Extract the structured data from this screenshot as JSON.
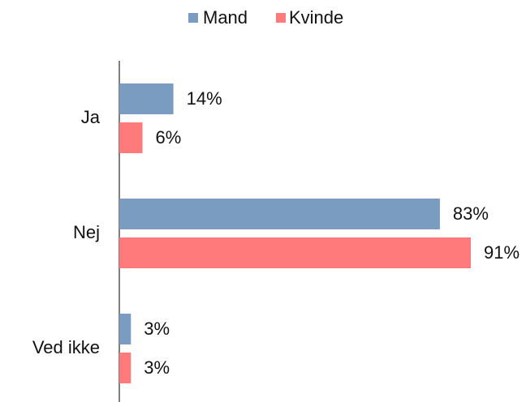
{
  "chart_data": {
    "type": "bar",
    "orientation": "horizontal",
    "categories": [
      "Ja",
      "Nej",
      "Ved ikke"
    ],
    "series": [
      {
        "name": "Mand",
        "color": "#7a9cc1",
        "values": [
          14,
          83,
          3
        ],
        "value_labels": [
          "14%",
          "83%",
          "3%"
        ]
      },
      {
        "name": "Kvinde",
        "color": "#ff7b7b",
        "values": [
          6,
          91,
          3
        ],
        "value_labels": [
          "6%",
          "91%",
          "3%"
        ]
      }
    ],
    "legend": "top"
  }
}
